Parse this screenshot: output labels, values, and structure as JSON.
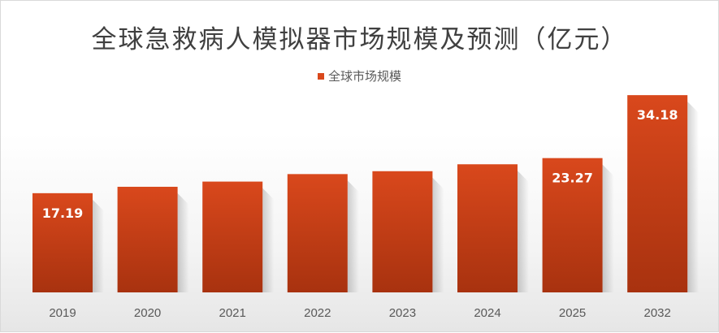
{
  "chart_data": {
    "type": "bar",
    "title": "全球急救病人模拟器市场规模及预测（亿元）",
    "categories": [
      "2019",
      "2020",
      "2021",
      "2022",
      "2023",
      "2024",
      "2025",
      "2032"
    ],
    "series": [
      {
        "name": "全球市场规模",
        "values": [
          17.19,
          18.3,
          19.2,
          20.5,
          21.0,
          22.2,
          23.27,
          34.18
        ],
        "data_labels": [
          "17.19",
          null,
          null,
          null,
          null,
          null,
          "23.27",
          "34.18"
        ]
      }
    ],
    "ylim": [
      0,
      38
    ],
    "grid": false,
    "legend_position": "top",
    "colors": {
      "bar_top": "#d9481c",
      "bar_bottom": "#a8320f"
    }
  }
}
